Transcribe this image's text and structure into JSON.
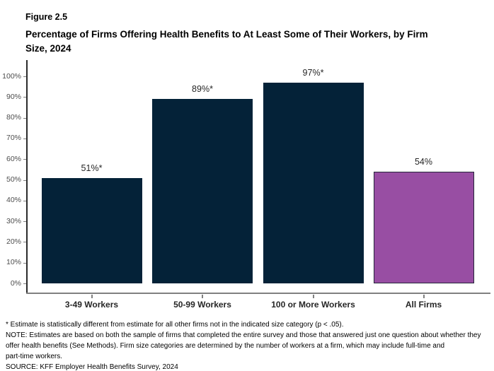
{
  "figure": {
    "number": "Figure 2.5",
    "title": "Percentage of Firms Offering Health Benefits to At Least Some of Their Workers, by Firm Size, 2024",
    "title_lines": [
      "Percentage of Firms Offering Health Benefits to At Least Some of Their Workers, by Firm",
      "Size, 2024"
    ]
  },
  "chart_data": {
    "type": "bar",
    "title": "Percentage of Firms Offering Health Benefits to At Least Some of Their Workers, by Firm Size, 2024",
    "categories": [
      "3-49 Workers",
      "50-99 Workers",
      "100 or More Workers",
      "All Firms"
    ],
    "values": [
      51,
      89,
      97,
      54
    ],
    "bar_labels": [
      "51%*",
      "89%*",
      "97%*",
      "54%"
    ],
    "xlabel": "",
    "ylabel": "",
    "ylim": [
      0,
      100
    ],
    "ytick_step": 10,
    "ytick_labels": [
      "0%",
      "10%",
      "20%",
      "30%",
      "40%",
      "50%",
      "60%",
      "70%",
      "80%",
      "90%",
      "100%"
    ],
    "grid": false,
    "legend": "none",
    "colors": {
      "bar_fill": [
        "#042238",
        "#042238",
        "#042238",
        "#984EA3"
      ],
      "bar_border": [
        "#042238",
        "#042238",
        "#042238",
        "#26263A"
      ],
      "y_axis_line": "#2B2B2B",
      "x_axis_line": "#808080",
      "tick_mark": "#808080",
      "ytick_label": "#4D4D4D",
      "value_label": "#262626",
      "category_label": "#262626"
    }
  },
  "footnotes": {
    "lines": [
      "* Estimate is statistically different from estimate for all other firms not in the indicated size category (p < .05).",
      "NOTE: Estimates are based on both the sample of firms that completed the entire survey and those that answered just one question about whether they",
      "offer health benefits (See Methods). Firm size categories are determined by the number of workers at a firm, which may include full-time and",
      "part-time workers.",
      "SOURCE: KFF Employer Health Benefits Survey, 2024"
    ]
  }
}
